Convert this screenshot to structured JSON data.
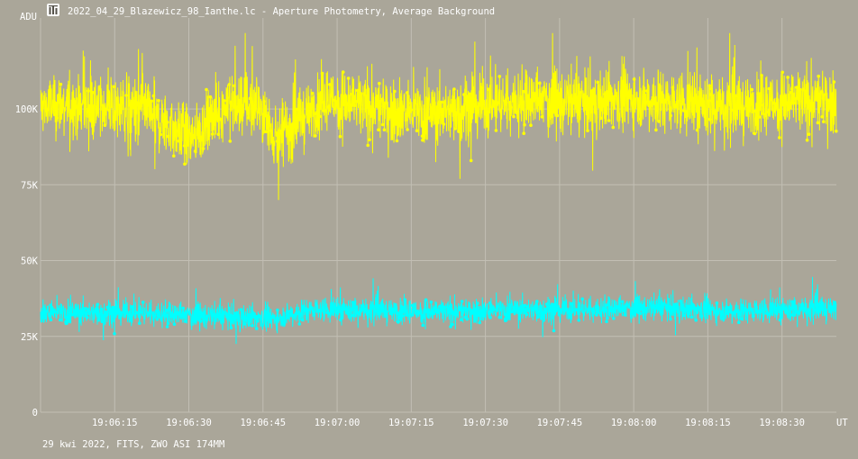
{
  "window": {
    "title": "2022_04_29_Blazewicz_98_Ianthe.lc - Aperture Photometry, Average Background",
    "icon": "lightcurve-app-icon"
  },
  "footer": {
    "info": "29 kwi 2022, FITS, ZWO ASI 174MM"
  },
  "chart_data": {
    "type": "scatter",
    "title": "",
    "xlabel": "UT",
    "ylabel": "ADU",
    "x_ticks": [
      "19:06:15",
      "19:06:30",
      "19:06:45",
      "19:07:00",
      "19:07:15",
      "19:07:30",
      "19:07:45",
      "19:08:00",
      "19:08:15",
      "19:08:30"
    ],
    "y_ticks": [
      "0",
      "25K",
      "50K",
      "75K",
      "100K"
    ],
    "y_tick_values": [
      0,
      25000,
      50000,
      75000,
      100000
    ],
    "xlim": [
      "19:06:00",
      "19:08:41"
    ],
    "ylim": [
      0,
      130000
    ],
    "grid": true,
    "background": "#aaa699",
    "series": [
      {
        "color": "#ffff00",
        "style": "dense points joined by vertical lines",
        "mean_profile": [
          [
            "19:06:00",
            101000
          ],
          [
            "19:06:10",
            101000
          ],
          [
            "19:06:20",
            100000
          ],
          [
            "19:06:27",
            93000
          ],
          [
            "19:06:31",
            91000
          ],
          [
            "19:06:38",
            102000
          ],
          [
            "19:06:44",
            101000
          ],
          [
            "19:06:48",
            90000
          ],
          [
            "19:06:52",
            96000
          ],
          [
            "19:06:58",
            103000
          ],
          [
            "19:07:05",
            101000
          ],
          [
            "19:07:10",
            100000
          ],
          [
            "19:07:20",
            99000
          ],
          [
            "19:07:30",
            102000
          ],
          [
            "19:07:40",
            103000
          ],
          [
            "19:07:50",
            102000
          ],
          [
            "19:08:00",
            104000
          ],
          [
            "19:08:10",
            102000
          ],
          [
            "19:08:20",
            100000
          ],
          [
            "19:08:30",
            102000
          ],
          [
            "19:08:41",
            103000
          ]
        ],
        "scatter_range": 14000,
        "max": 125000,
        "min": 70000
      },
      {
        "color": "#00ffff",
        "style": "dense points joined by vertical lines",
        "mean_profile": [
          [
            "19:06:00",
            33000
          ],
          [
            "19:06:20",
            33000
          ],
          [
            "19:06:30",
            32000
          ],
          [
            "19:06:47",
            31000
          ],
          [
            "19:06:55",
            34000
          ],
          [
            "19:07:05",
            33500
          ],
          [
            "19:07:20",
            33000
          ],
          [
            "19:07:35",
            34000
          ],
          [
            "19:07:50",
            34000
          ],
          [
            "19:08:05",
            34500
          ],
          [
            "19:08:20",
            33500
          ],
          [
            "19:08:41",
            34000
          ]
        ],
        "scatter_range": 5500,
        "max": 45000,
        "min": 20000
      }
    ]
  }
}
